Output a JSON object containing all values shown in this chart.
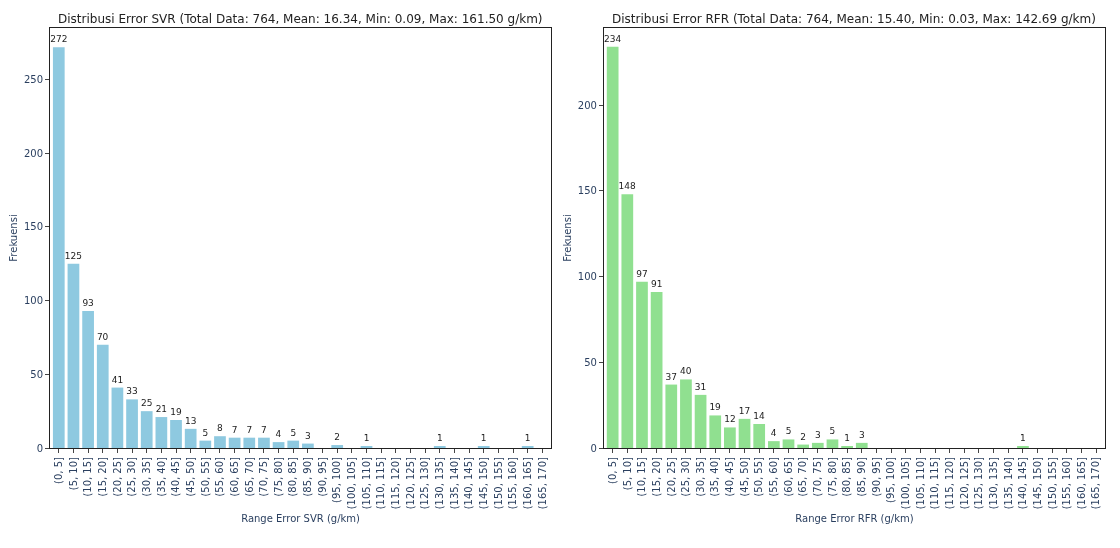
{
  "chart_data": [
    {
      "type": "bar",
      "title": "Distribusi Error SVR (Total Data: 764, Mean: 16.34, Min: 0.09, Max: 161.50 g/km)",
      "xlabel": "Range Error SVR (g/km)",
      "ylabel": "Frekuensi",
      "categories": [
        "(0, 5]",
        "(5, 10]",
        "(10, 15]",
        "(15, 20]",
        "(20, 25]",
        "(25, 30]",
        "(30, 35]",
        "(35, 40]",
        "(40, 45]",
        "(45, 50]",
        "(50, 55]",
        "(55, 60]",
        "(60, 65]",
        "(65, 70]",
        "(70, 75]",
        "(75, 80]",
        "(80, 85]",
        "(85, 90]",
        "(90, 95]",
        "(95, 100]",
        "(100, 105]",
        "(105, 110]",
        "(110, 115]",
        "(115, 120]",
        "(120, 125]",
        "(125, 130]",
        "(130, 135]",
        "(135, 140]",
        "(140, 145]",
        "(145, 150]",
        "(150, 155]",
        "(155, 160]",
        "(160, 165]",
        "(165, 170]"
      ],
      "values": [
        272,
        125,
        93,
        70,
        41,
        33,
        25,
        21,
        19,
        13,
        5,
        8,
        7,
        7,
        7,
        4,
        5,
        3,
        0,
        2,
        0,
        1,
        0,
        0,
        0,
        0,
        1,
        0,
        0,
        1,
        0,
        0,
        1,
        0
      ],
      "value_labels": [
        "272",
        "125",
        "93",
        "70",
        "41",
        "33",
        "25",
        "21",
        "19",
        "13",
        "5",
        "8",
        "7",
        "7",
        "7",
        "4",
        "5",
        "3",
        null,
        "2",
        null,
        "1",
        null,
        null,
        null,
        null,
        "1",
        null,
        null,
        "1",
        null,
        null,
        "1",
        null
      ],
      "color": "#8ec9e0",
      "ylim": [
        0,
        285
      ],
      "yticks": [
        0,
        50,
        100,
        150,
        200,
        250
      ],
      "legend": false
    },
    {
      "type": "bar",
      "title": "Distribusi Error RFR (Total Data: 764, Mean: 15.40, Min: 0.03, Max: 142.69 g/km)",
      "xlabel": "Range Error RFR (g/km)",
      "ylabel": "Frekuensi",
      "categories": [
        "(0, 5]",
        "(5, 10]",
        "(10, 15]",
        "(15, 20]",
        "(20, 25]",
        "(25, 30]",
        "(30, 35]",
        "(35, 40]",
        "(40, 45]",
        "(45, 50]",
        "(50, 55]",
        "(55, 60]",
        "(60, 65]",
        "(65, 70]",
        "(70, 75]",
        "(75, 80]",
        "(80, 85]",
        "(85, 90]",
        "(90, 95]",
        "(95, 100]",
        "(100, 105]",
        "(105, 110]",
        "(110, 115]",
        "(115, 120]",
        "(120, 125]",
        "(125, 130]",
        "(130, 135]",
        "(135, 140]",
        "(140, 145]",
        "(145, 150]",
        "(150, 155]",
        "(155, 160]",
        "(160, 165]",
        "(165, 170]"
      ],
      "values": [
        234,
        148,
        97,
        91,
        37,
        40,
        31,
        19,
        12,
        17,
        14,
        4,
        5,
        2,
        3,
        5,
        1,
        3,
        0,
        0,
        0,
        0,
        0,
        0,
        0,
        0,
        0,
        0,
        1,
        0,
        0,
        0,
        0,
        0
      ],
      "value_labels": [
        "234",
        "148",
        "97",
        "91",
        "37",
        "40",
        "31",
        "19",
        "12",
        "17",
        "14",
        "4",
        "5",
        "2",
        "3",
        "5",
        "1",
        "3",
        null,
        null,
        null,
        null,
        null,
        null,
        null,
        null,
        null,
        null,
        "1",
        null,
        null,
        null,
        null,
        null
      ],
      "color": "#90e090",
      "ylim": [
        0,
        245
      ],
      "yticks": [
        0,
        50,
        100,
        150,
        200
      ],
      "legend": false
    }
  ]
}
